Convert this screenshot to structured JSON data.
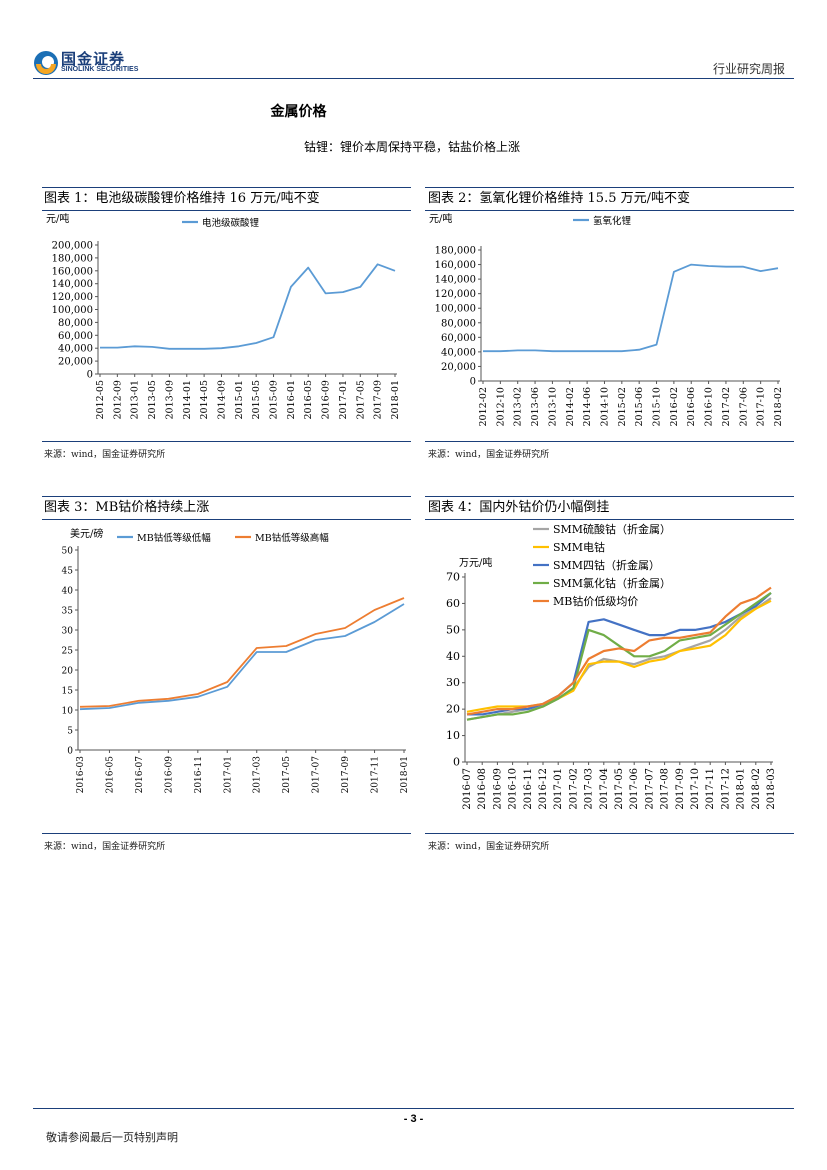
{
  "header": {
    "logo_cn": "国金证券",
    "logo_en": "SINOLINK SECURITIES",
    "report_type": "行业研究周报"
  },
  "section": {
    "title": "金属价格",
    "subtitle": "钴锂：锂价本周保持平稳，钴盐价格上涨"
  },
  "figures": [
    {
      "title": "图表 1：电池级碳酸锂价格维持 16 万元/吨不变",
      "source": "来源：wind，国金证券研究所"
    },
    {
      "title": "图表 2：氢氧化锂价格维持 15.5 万元/吨不变",
      "source": "来源：wind，国金证券研究所"
    },
    {
      "title": "图表 3：MB钴价格持续上涨",
      "source": "来源：wind，国金证券研究所"
    },
    {
      "title": "图表 4：国内外钴价仍小幅倒挂",
      "source": "来源：wind，国金证券研究所"
    }
  ],
  "chart_data": [
    {
      "type": "line",
      "unit_label": "元/吨",
      "legend": [
        "电池级碳酸锂"
      ],
      "x": [
        "2012-05",
        "2012-09",
        "2013-01",
        "2013-05",
        "2013-09",
        "2014-01",
        "2014-05",
        "2014-09",
        "2015-01",
        "2015-05",
        "2015-09",
        "2016-01",
        "2016-05",
        "2016-09",
        "2017-01",
        "2017-05",
        "2017-09",
        "2018-01"
      ],
      "yticks": [
        "0",
        "20,000",
        "40,000",
        "60,000",
        "80,000",
        "100,000",
        "120,000",
        "140,000",
        "160,000",
        "180,000",
        "200,000"
      ],
      "ylim": [
        0,
        200000
      ],
      "series": [
        {
          "name": "电池级碳酸锂",
          "color": "#5b9bd5",
          "values": [
            41000,
            41000,
            43000,
            42000,
            39000,
            39000,
            39000,
            40000,
            43000,
            48000,
            57000,
            135000,
            165000,
            125000,
            127000,
            135000,
            170000,
            160000
          ]
        }
      ]
    },
    {
      "type": "line",
      "unit_label": "元/吨",
      "legend": [
        "氢氧化锂"
      ],
      "x": [
        "2012-02",
        "2012-10",
        "2013-02",
        "2013-06",
        "2013-10",
        "2014-02",
        "2014-06",
        "2014-10",
        "2015-02",
        "2015-06",
        "2015-10",
        "2016-02",
        "2016-06",
        "2016-10",
        "2017-02",
        "2017-06",
        "2017-10",
        "2018-02"
      ],
      "yticks": [
        "0",
        "20,000",
        "40,000",
        "60,000",
        "80,000",
        "100,000",
        "120,000",
        "140,000",
        "160,000",
        "180,000"
      ],
      "ylim": [
        0,
        180000
      ],
      "series": [
        {
          "name": "氢氧化锂",
          "color": "#5b9bd5",
          "values": [
            41000,
            41000,
            42000,
            42000,
            41000,
            41000,
            41000,
            41000,
            41000,
            43000,
            50000,
            150000,
            160000,
            158000,
            157000,
            157000,
            151000,
            155000
          ]
        }
      ]
    },
    {
      "type": "line",
      "unit_label": "美元/磅",
      "legend": [
        "MB钴低等级低幅",
        "MB钴低等级高幅"
      ],
      "x": [
        "2016-03",
        "2016-05",
        "2016-07",
        "2016-09",
        "2016-11",
        "2017-01",
        "2017-03",
        "2017-05",
        "2017-07",
        "2017-09",
        "2017-11",
        "2018-01"
      ],
      "yticks": [
        "0",
        "5",
        "10",
        "15",
        "20",
        "25",
        "30",
        "35",
        "40",
        "45",
        "50"
      ],
      "ylim": [
        0,
        50
      ],
      "series": [
        {
          "name": "MB钴低等级低幅",
          "color": "#5b9bd5",
          "values": [
            10.2,
            10.5,
            11.8,
            12.3,
            13.3,
            15.8,
            24.5,
            24.5,
            27.5,
            28.5,
            32.0,
            36.5
          ]
        },
        {
          "name": "MB钴低等级高幅",
          "color": "#ed7d31",
          "values": [
            10.8,
            11.0,
            12.3,
            12.8,
            14.0,
            17.0,
            25.5,
            26.0,
            29.0,
            30.5,
            35.0,
            38.0
          ]
        }
      ]
    },
    {
      "type": "line",
      "unit_label": "万元/吨",
      "legend": [
        "SMM硫酸钴（折金属）",
        "SMM电钴",
        "SMM四钴（折金属）",
        "SMM氯化钴（折金属）",
        "MB钴价低级均价"
      ],
      "x": [
        "2016-07",
        "2016-08",
        "2016-09",
        "2016-10",
        "2016-11",
        "2016-12",
        "2017-01",
        "2017-02",
        "2017-03",
        "2017-04",
        "2017-05",
        "2017-06",
        "2017-07",
        "2017-08",
        "2017-09",
        "2017-10",
        "2017-11",
        "2017-12",
        "2018-01",
        "2018-02",
        "2018-03"
      ],
      "yticks": [
        "0",
        "10",
        "20",
        "30",
        "40",
        "50",
        "60",
        "70"
      ],
      "ylim": [
        0,
        70
      ],
      "series": [
        {
          "name": "SMM硫酸钴（折金属）",
          "color": "#a5a5a5",
          "values": [
            16,
            17,
            18,
            19,
            20,
            21,
            24,
            28,
            36,
            39,
            38,
            37,
            39,
            40,
            42,
            44,
            46,
            50,
            55,
            58,
            62
          ]
        },
        {
          "name": "SMM电钴",
          "color": "#ffc000",
          "values": [
            19,
            20,
            21,
            21,
            21,
            22,
            24,
            27,
            37,
            38,
            38,
            36,
            38,
            39,
            42,
            43,
            44,
            48,
            54,
            58,
            61
          ]
        },
        {
          "name": "SMM四钴（折金属）",
          "color": "#4472c4",
          "values": [
            18,
            18,
            19,
            20,
            20,
            22,
            25,
            30,
            53,
            54,
            52,
            50,
            48,
            48,
            50,
            50,
            51,
            53,
            56,
            59,
            64
          ]
        },
        {
          "name": "SMM氯化钴（折金属）",
          "color": "#70ad47",
          "values": [
            16,
            17,
            18,
            18,
            19,
            21,
            24,
            28,
            50,
            48,
            44,
            40,
            40,
            42,
            46,
            47,
            48,
            52,
            56,
            60,
            64
          ]
        },
        {
          "name": "MB钴价低级均价",
          "color": "#ed7d31",
          "values": [
            18,
            19,
            20,
            20,
            21,
            22,
            25,
            30,
            39,
            42,
            43,
            42,
            46,
            47,
            47,
            48,
            49,
            55,
            60,
            62,
            66
          ]
        }
      ]
    }
  ],
  "footer": {
    "disclaimer": "敬请参阅最后一页特别声明",
    "page": "- 3 -"
  }
}
